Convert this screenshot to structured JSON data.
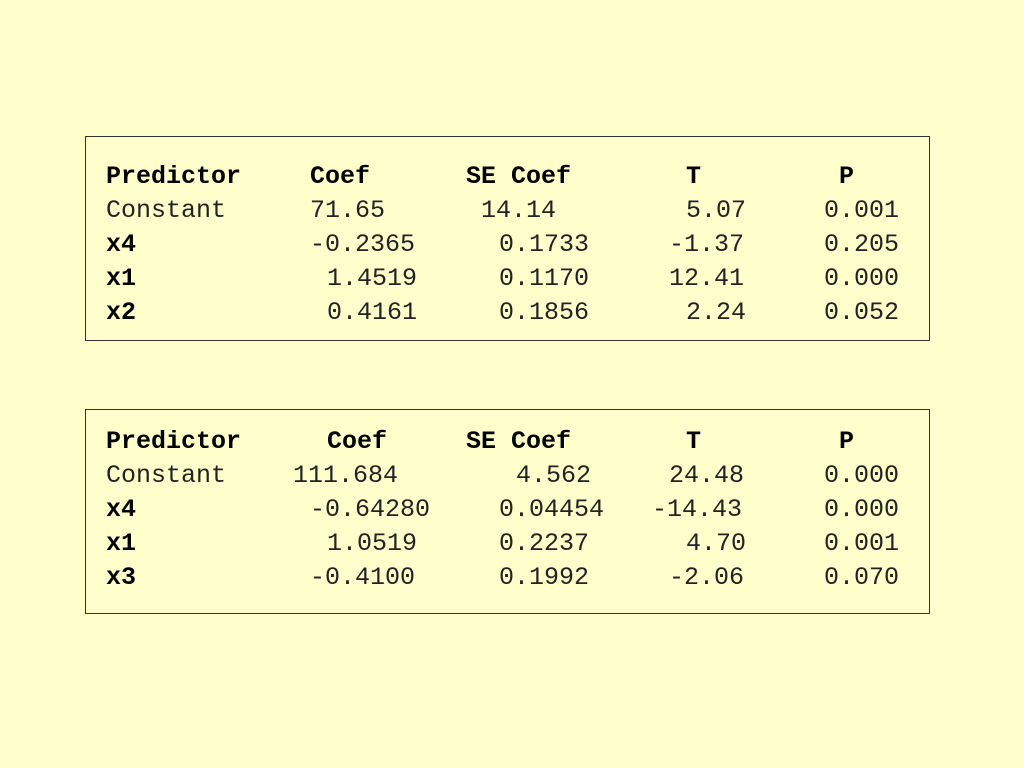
{
  "tables": [
    {
      "header": [
        "Predictor",
        "Coef",
        "SE Coef",
        "T",
        "P"
      ],
      "rows": [
        [
          "Constant",
          "71.65",
          "14.14",
          "5.07",
          "0.001"
        ],
        [
          "x4",
          "-0.2365",
          "0.1733",
          "-1.37",
          "0.205"
        ],
        [
          "x1",
          "1.4519",
          "0.1170",
          "12.41",
          "0.000"
        ],
        [
          "x2",
          "0.4161",
          "0.1856",
          "2.24",
          "0.052"
        ]
      ]
    },
    {
      "header": [
        "Predictor",
        "Coef",
        "SE Coef",
        "T",
        "P"
      ],
      "rows": [
        [
          "Constant",
          "111.684",
          "4.562",
          "24.48",
          "0.000"
        ],
        [
          "x4",
          "-0.64280",
          "0.04454",
          "-14.43",
          "0.000"
        ],
        [
          "x1",
          "1.0519",
          "0.2237",
          "4.70",
          "0.001"
        ],
        [
          "x3",
          "-0.4100",
          "0.1992",
          "-2.06",
          "0.070"
        ]
      ]
    }
  ]
}
